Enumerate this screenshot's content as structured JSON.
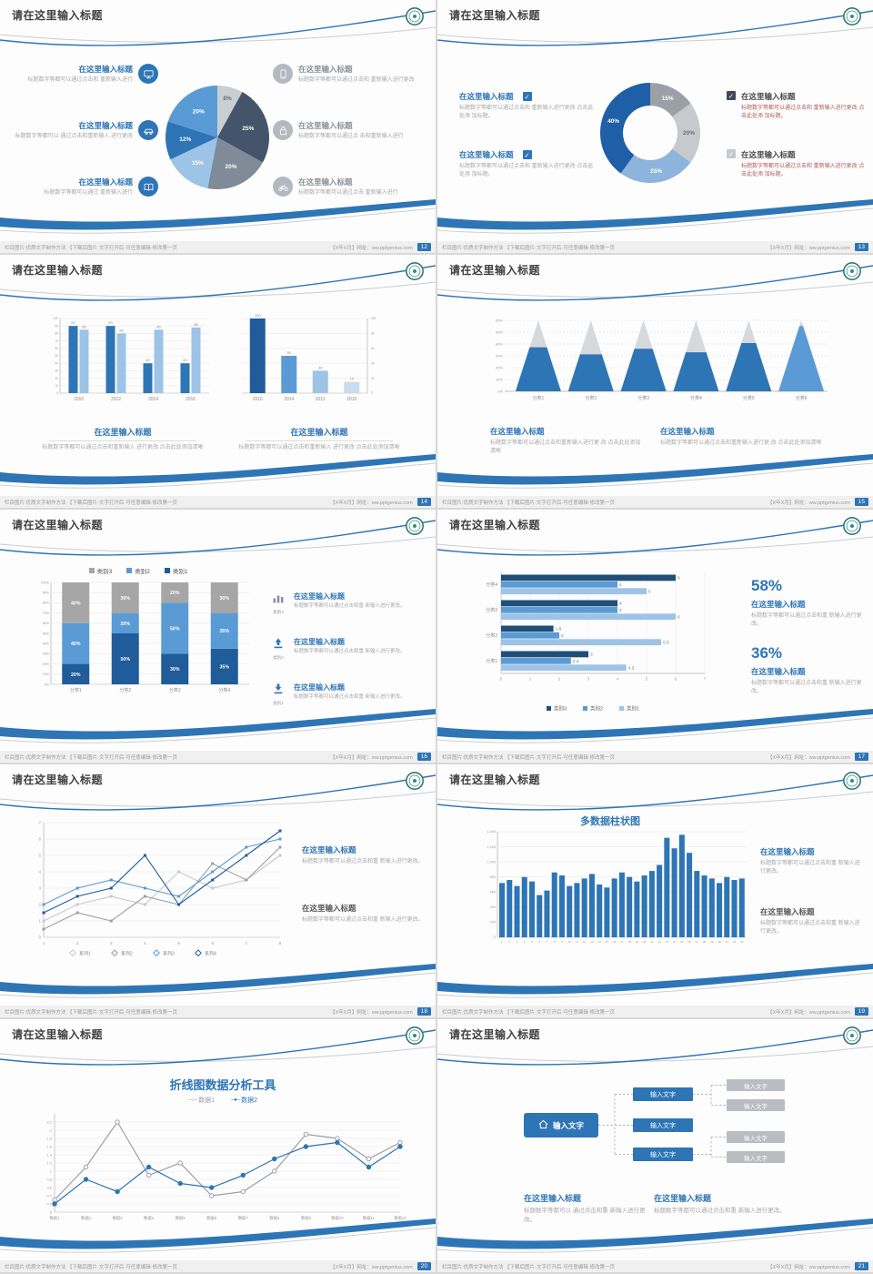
{
  "colors": {
    "accent": "#2e75b6",
    "dark_blue": "#1f5c99",
    "mid_blue": "#5b9bd5",
    "light_blue": "#9dc3e6",
    "gray": "#a6a6a6",
    "slate": "#44546a"
  },
  "common": {
    "slide_title": "请在这里输入标题",
    "footer_left": "栏目图片:优质文字制作方法 【下载后图片·文字打开后·可任意编辑·修改第一页",
    "footer_right": "【X年X月】网址：ww.pptgenius.com"
  },
  "slides": [
    {
      "page_no": "12",
      "chart": {
        "type": "pie",
        "slices": [
          {
            "label": "8%",
            "value": 8,
            "color": "#c9ced3",
            "label_color": "#6a6f75"
          },
          {
            "label": "25%",
            "value": 25,
            "color": "#44546a",
            "label_color": "#ffffff"
          },
          {
            "label": "20%",
            "value": 20,
            "color": "#7f8b99",
            "label_color": "#ffffff"
          },
          {
            "label": "15%",
            "value": 15,
            "color": "#9dc3e6",
            "label_color": "#ffffff"
          },
          {
            "label": "12%",
            "value": 12,
            "color": "#2e75b6",
            "label_color": "#ffffff"
          },
          {
            "label": "20%",
            "value": 20,
            "color": "#5b9bd5",
            "label_color": "#ffffff"
          }
        ]
      },
      "left_items": [
        {
          "heading": "在这里输入标题",
          "body": "标题数字等都可以通过点击和 重新输入进行",
          "icon": "monitor-icon"
        },
        {
          "heading": "在这里输入标题",
          "body": "标题数字等都可以 通过点击和重新输入 进行更改",
          "icon": "car-icon"
        },
        {
          "heading": "在这里输入标题",
          "body": "标题数字等都可以通过 重新输入进行",
          "icon": "book-icon"
        }
      ],
      "right_items": [
        {
          "heading": "在这里输入标题",
          "body": "标题数字等都可以通过点击和 重新输入进行更改",
          "icon": "phone-icon"
        },
        {
          "heading": "在这里输入标题",
          "body": "标题数字等都可以通过点 击和重新输入进行",
          "icon": "lock-icon"
        },
        {
          "heading": "在这里输入标题",
          "body": "标题数字等都可以通过点击 重新输入进行",
          "icon": "bicycle-icon"
        }
      ]
    },
    {
      "page_no": "13",
      "chart": {
        "type": "donut",
        "slices": [
          {
            "label": "15%",
            "value": 15,
            "color": "#9aa0a6",
            "label_color": "#ffffff"
          },
          {
            "label": "20%",
            "value": 20,
            "color": "#c6cacd",
            "label_color": "#6a6f75"
          },
          {
            "label": "25%",
            "value": 25,
            "color": "#8eb4dd",
            "label_color": "#ffffff"
          },
          {
            "label": "40%",
            "value": 40,
            "color": "#1f5fa8",
            "label_color": "#ffffff"
          }
        ]
      },
      "left_items": [
        {
          "heading": "在这里输入标题",
          "body": "标题数字等都可以通过点击和 重新输入进行更改 点击此处添 加标题。"
        },
        {
          "heading": "在这里输入标题",
          "body": "标题数字等都可以通过点击和 重新输入进行更改 点击此处添 加标题。"
        }
      ],
      "right_items": [
        {
          "heading": "在这里输入标题",
          "body": "标题数字等都可以通过点击和 重新输入进行更改 点击此处添 加标题。"
        },
        {
          "heading": "在这里输入标题",
          "body": "标题数字等都可以通过点击和 重新输入进行更改 点击此处添 加标题。"
        }
      ]
    },
    {
      "page_no": "14",
      "chart_a": {
        "type": "bar",
        "categories": [
          "2010",
          "2012",
          "2014",
          "2016"
        ],
        "series": [
          {
            "color": "#2e75b6",
            "values": [
              90,
              90,
              40,
              40
            ]
          },
          {
            "color": "#9dc3e6",
            "values": [
              85,
              80,
              85,
              88
            ]
          }
        ],
        "ymax": 100
      },
      "chart_b": {
        "type": "bar",
        "categories": [
          "2016",
          "2014",
          "2012",
          "2010"
        ],
        "values": [
          100,
          50,
          30,
          15
        ],
        "colors": [
          "#1f5c99",
          "#5b9bd5",
          "#9dc3e6",
          "#c9dcf0"
        ],
        "ymax": 100
      },
      "blocks": [
        {
          "heading": "在这里输入标题",
          "body": "标题数字等都可以通过点击和重新输入 进行更改 点击此处添加清晰"
        },
        {
          "heading": "在这里输入标题",
          "body": "标题数字等都可以通过点击和重新输入 进行更改 点击此处添加清晰"
        }
      ]
    },
    {
      "page_no": "15",
      "chart": {
        "type": "pyramid",
        "categories": [
          "分类1",
          "分类2",
          "分类3",
          "分类4",
          "分类5",
          "分类6"
        ],
        "fill_percent": [
          62,
          52,
          60,
          55,
          68,
          92
        ],
        "colors": [
          "#2e75b6",
          "#2e75b6",
          "#2e75b6",
          "#2e75b6",
          "#2e75b6",
          "#5b9bd5"
        ],
        "ytick_labels": [
          "0%",
          "10%",
          "20%",
          "30%",
          "40%",
          "50%",
          "60%"
        ]
      },
      "blocks": [
        {
          "heading": "在这里输入标题",
          "body": "标题数字等都可以通过点击和重新输入进行更 改 点击此处添加清晰"
        },
        {
          "heading": "在这里输入标题",
          "body": "标题数字等都可以通过点击和重新输入进行更 改 点击此处添加清晰"
        }
      ]
    },
    {
      "page_no": "16",
      "legend": [
        "类别3",
        "类别2",
        "类别1"
      ],
      "chart": {
        "type": "stacked-bar",
        "categories": [
          "分类1",
          "分类2",
          "分类3",
          "分类4"
        ],
        "series": [
          {
            "name": "类别1",
            "color": "#1f5c99",
            "values": [
              20,
              50,
              30,
              35
            ]
          },
          {
            "name": "类别2",
            "color": "#5b9bd5",
            "values": [
              40,
              20,
              50,
              35
            ]
          },
          {
            "name": "类别3",
            "color": "#a6a6a6",
            "values": [
              40,
              30,
              20,
              30
            ]
          }
        ]
      },
      "right_items": [
        {
          "icon": "bar-chart-icon",
          "icon_label": "类别3",
          "heading": "在这里输入标题",
          "body": "标题数字等都可以通过点击和重 新输入进行更改。"
        },
        {
          "icon": "arrow-up-icon",
          "icon_label": "类别2",
          "heading": "在这里输入标题",
          "body": "标题数字等都可以通过点击和重 新输入进行更改。"
        },
        {
          "icon": "arrow-down-icon",
          "icon_label": "类别1",
          "heading": "在这里输入标题",
          "body": "标题数字等都可以通过点击和重 新输入进行更改。"
        }
      ]
    },
    {
      "page_no": "17",
      "chart": {
        "type": "hbar",
        "categories": [
          "分类4",
          "分类3",
          "分类2",
          "分类1"
        ],
        "series_colors": [
          "#1f4e79",
          "#5b9bd5",
          "#9dc3e6"
        ],
        "values": [
          [
            6,
            4,
            5
          ],
          [
            4,
            4,
            6
          ],
          [
            1.8,
            2,
            5.5
          ],
          [
            3,
            2.4,
            4.3
          ]
        ],
        "xmax": 7,
        "legend": [
          "类别3",
          "类别2",
          "类别1"
        ]
      },
      "stats": [
        {
          "value": "58%",
          "heading": "在这里输入标题",
          "body": "标题数字等都可以通过点击和重 新输入进行更改。"
        },
        {
          "value": "36%",
          "heading": "在这里输入标题",
          "body": "标题数字等都可以通过点击和重 新输入进行更改。"
        }
      ]
    },
    {
      "page_no": "18",
      "chart": {
        "type": "line",
        "x_labels": [
          "1",
          "2",
          "3",
          "4",
          "5",
          "6",
          "7",
          "8"
        ],
        "ymax": 7,
        "series": [
          {
            "name": "系列1",
            "color": "#c9c9c9",
            "values": [
              1,
              2,
              2.5,
              2,
              4,
              3,
              3.5,
              5
            ]
          },
          {
            "name": "系列2",
            "color": "#9aa0a6",
            "values": [
              0.5,
              1.5,
              1,
              2.5,
              2,
              4.5,
              3.5,
              5.5
            ]
          },
          {
            "name": "系列3",
            "color": "#5b9bd5",
            "values": [
              2,
              3,
              3.5,
              3,
              2.5,
              4,
              5.5,
              6
            ]
          },
          {
            "name": "系列4",
            "color": "#1f5c99",
            "values": [
              1.5,
              2.5,
              3,
              5,
              2,
              3.5,
              5,
              6.5
            ]
          }
        ]
      },
      "blocks": [
        {
          "heading": "在这里输入标题",
          "body": "标题数字等都可以通过点击和重 新输入进行更改。"
        },
        {
          "heading": "在这里输入标题",
          "body": "标题数字等都可以通过点击和重 新输入进行更改。"
        }
      ]
    },
    {
      "page_no": "19",
      "chart_title": "多数据柱状图",
      "chart": {
        "type": "column",
        "ymax": 1400,
        "color": "#2e75b6",
        "ytick_labels": [
          "0",
          "200",
          "400",
          "600",
          "800",
          "1,000",
          "1,200",
          "1,400"
        ],
        "x_labels": [
          "1",
          "2",
          "3",
          "4",
          "5",
          "6",
          "7",
          "8",
          "9",
          "10",
          "11",
          "12",
          "13",
          "14",
          "15",
          "16",
          "17",
          "18",
          "19",
          "20",
          "21",
          "22",
          "23",
          "24",
          "25",
          "26",
          "27",
          "28",
          "29",
          "30",
          "31",
          "32",
          "33"
        ],
        "values": [
          720,
          760,
          680,
          800,
          740,
          560,
          620,
          860,
          820,
          680,
          720,
          780,
          840,
          700,
          660,
          780,
          860,
          800,
          740,
          820,
          880,
          960,
          1320,
          1180,
          1360,
          1120,
          880,
          820,
          780,
          720,
          800,
          760,
          780
        ]
      },
      "blocks": [
        {
          "heading": "在这里输入标题",
          "body": "标题数字等都可以通过点击和重 新输入进行更改。"
        },
        {
          "heading": "在这里输入标题",
          "body": "标题数字等都可以通过点击和重 新输入进行更改。"
        }
      ]
    },
    {
      "page_no": "20",
      "chart_title": "折线图数据分析工具",
      "legend": [
        {
          "marker": "─○─",
          "name": "数据1",
          "color": "#9aa0a6"
        },
        {
          "marker": "─●─",
          "name": "数据2",
          "color": "#2e75b6"
        }
      ],
      "chart": {
        "type": "line",
        "ymax": 2.4,
        "ytick_labels": [
          "0",
          "0.2",
          "0.4",
          "0.6",
          "0.8",
          "1",
          "1.2",
          "1.4",
          "1.6",
          "1.8",
          "2",
          "2.2"
        ],
        "x_labels": [
          "数据1",
          "数据2",
          "数据3",
          "数据4",
          "数据5",
          "数据6",
          "数据7",
          "数据8",
          "数据9",
          "数据10",
          "数据11",
          "数据12"
        ],
        "series": [
          {
            "name": "数据1",
            "color": "#9aa0a6",
            "marker": "hollow",
            "values": [
              0.3,
              1.1,
              2.2,
              0.9,
              1.2,
              0.4,
              0.5,
              1.0,
              1.9,
              1.8,
              1.3,
              1.7
            ]
          },
          {
            "name": "数据2",
            "color": "#2e75b6",
            "marker": "filled",
            "values": [
              0.2,
              0.8,
              0.5,
              1.1,
              0.7,
              0.6,
              0.9,
              1.3,
              1.6,
              1.7,
              1.1,
              1.6
            ]
          }
        ]
      },
      "blocks": []
    },
    {
      "page_no": "21",
      "diagram": {
        "home_label": "输入文字",
        "mid_labels": [
          "输入文字",
          "输入文字",
          "输入文字"
        ],
        "right_labels": [
          "输入文字",
          "输入文字",
          "输入文字",
          "输入文字"
        ]
      },
      "blocks": [
        {
          "heading": "在这里输入标题",
          "body": "标题数字等都可以 通过点击和重 新输入进行更改。"
        },
        {
          "heading": "在这里输入标题",
          "body": "标题数字等都可以通过点击和重 新输入进行更改。"
        }
      ]
    }
  ]
}
